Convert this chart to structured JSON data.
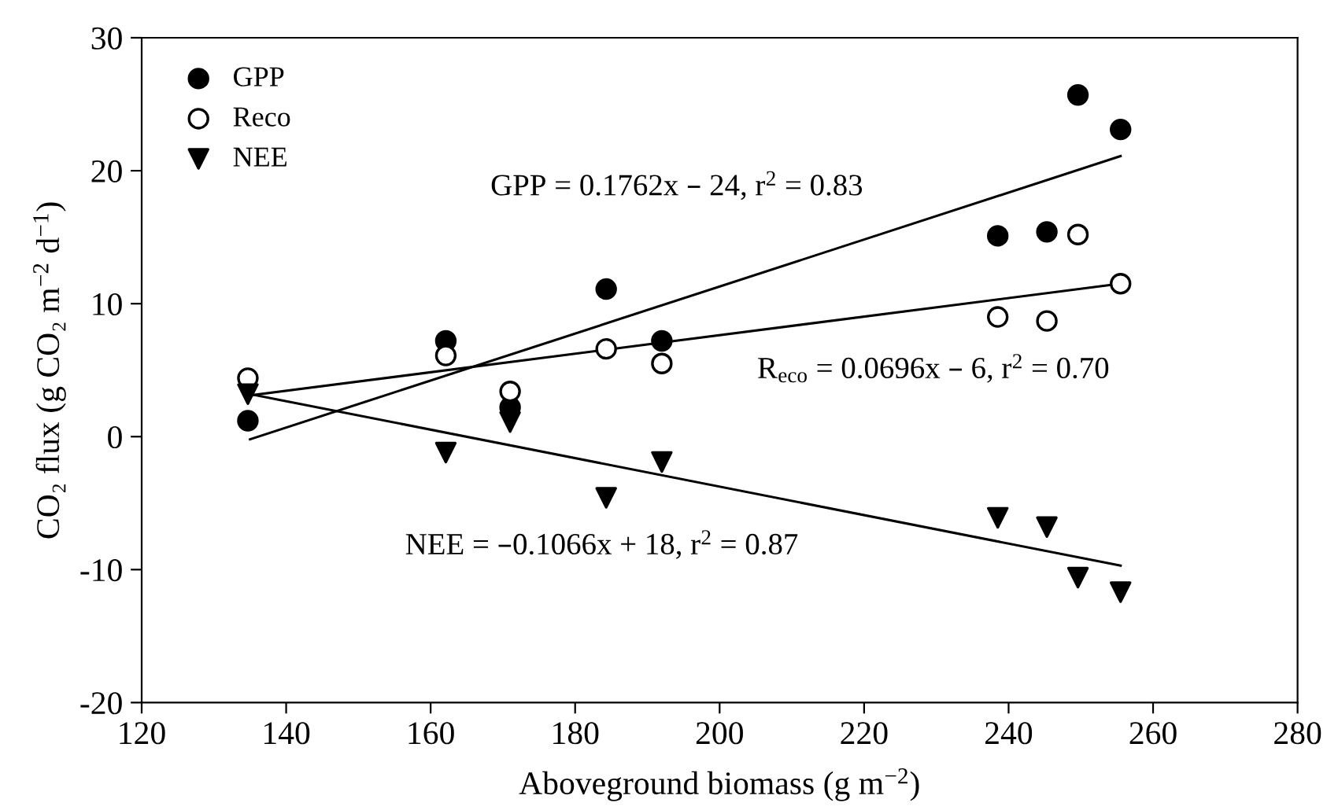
{
  "chart_data": {
    "type": "scatter",
    "xlabel": "Aboveground biomass (g m$^{−2}$)",
    "ylabel": "CO₂ flux (g CO₂ m$^{−2}$ d$^{−1}$)",
    "xlim": [
      120,
      280
    ],
    "xticks": [
      120,
      140,
      160,
      180,
      200,
      220,
      240,
      260,
      280
    ],
    "ylim": [
      -20,
      30
    ],
    "yticks": [
      -20,
      -10,
      0,
      10,
      20,
      30
    ],
    "grid": false,
    "legend": "top left",
    "series": [
      {
        "name": "GPP",
        "marker": "circle",
        "color": "#000000",
        "x": [
          134.7,
          162.1,
          171.0,
          184.3,
          192.0,
          238.5,
          245.3,
          249.6,
          255.5
        ],
        "values": [
          1.2,
          7.2,
          2.2,
          11.1,
          7.2,
          15.1,
          15.4,
          25.7,
          23.1
        ]
      },
      {
        "name": "Reco",
        "marker": "circle",
        "color": "#ffffff",
        "x": [
          134.7,
          162.1,
          171.0,
          184.3,
          192.0,
          238.5,
          245.3,
          249.6,
          255.5
        ],
        "values": [
          4.4,
          6.1,
          3.4,
          6.6,
          5.5,
          9.0,
          8.7,
          15.2,
          11.5
        ]
      },
      {
        "name": "NEE",
        "marker": "triangle",
        "color": "#000000",
        "x": [
          134.7,
          162.1,
          171.0,
          184.3,
          192.0,
          238.5,
          245.3,
          249.6,
          255.5
        ],
        "values": [
          3.2,
          -1.2,
          1.1,
          -4.6,
          -1.9,
          -6.1,
          -6.8,
          -10.6,
          -11.7
        ]
      },
      {
        "type": "line",
        "color": "#000000",
        "x": [
          135,
          255.5
        ],
        "values": [
          -0.2,
          21.1
        ]
      },
      {
        "type": "line",
        "color": "#000000",
        "x": [
          135,
          255.5
        ],
        "values": [
          3.1,
          11.5
        ]
      },
      {
        "type": "line",
        "color": "#000000",
        "x": [
          135,
          255.5
        ],
        "values": [
          3.2,
          -9.7
        ]
      }
    ],
    "annotations": [
      "GPP = 0.1762x – 24, r$^{2}$ = 0.83",
      "R$_{eco}$ = 0.0696x – 6, r$^{2}$ = 0.70",
      "NEE = –0.1066x + 18, r$^{2}$ = 0.87"
    ]
  }
}
